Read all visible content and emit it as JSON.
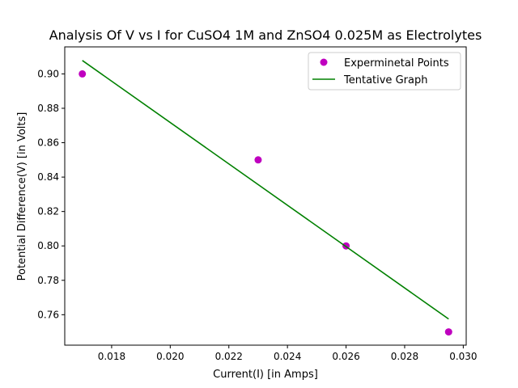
{
  "chart_data": {
    "type": "scatter",
    "title": "Analysis Of V vs I for CuSO4 1M and ZnSO4 0.025M as Electrolytes",
    "xlabel": "Current(I) [in Amps]",
    "ylabel": "Potential Difference(V) [in Volts]",
    "xlim": [
      0.0164,
      0.0301
    ],
    "ylim": [
      0.7423,
      0.9157
    ],
    "x_ticks": [
      {
        "value": 0.018,
        "label": "0.018"
      },
      {
        "value": 0.02,
        "label": "0.020"
      },
      {
        "value": 0.022,
        "label": "0.022"
      },
      {
        "value": 0.024,
        "label": "0.024"
      },
      {
        "value": 0.026,
        "label": "0.026"
      },
      {
        "value": 0.028,
        "label": "0.028"
      },
      {
        "value": 0.03,
        "label": "0.030"
      }
    ],
    "y_ticks": [
      {
        "value": 0.76,
        "label": "0.76"
      },
      {
        "value": 0.78,
        "label": "0.78"
      },
      {
        "value": 0.8,
        "label": "0.80"
      },
      {
        "value": 0.82,
        "label": "0.82"
      },
      {
        "value": 0.84,
        "label": "0.84"
      },
      {
        "value": 0.86,
        "label": "0.86"
      },
      {
        "value": 0.88,
        "label": "0.88"
      },
      {
        "value": 0.9,
        "label": "0.90"
      }
    ],
    "series": [
      {
        "name": "Experminetal Points",
        "kind": "scatter",
        "color": "#bf00bf",
        "points": [
          {
            "x": 0.017,
            "y": 0.9
          },
          {
            "x": 0.023,
            "y": 0.85
          },
          {
            "x": 0.026,
            "y": 0.8
          },
          {
            "x": 0.0295,
            "y": 0.75
          }
        ]
      },
      {
        "name": "Tentative Graph",
        "kind": "line",
        "color": "#008000",
        "points": [
          {
            "x": 0.017,
            "y": 0.9078
          },
          {
            "x": 0.0295,
            "y": 0.7575
          }
        ]
      }
    ],
    "grid": false,
    "legend": "top-right"
  }
}
